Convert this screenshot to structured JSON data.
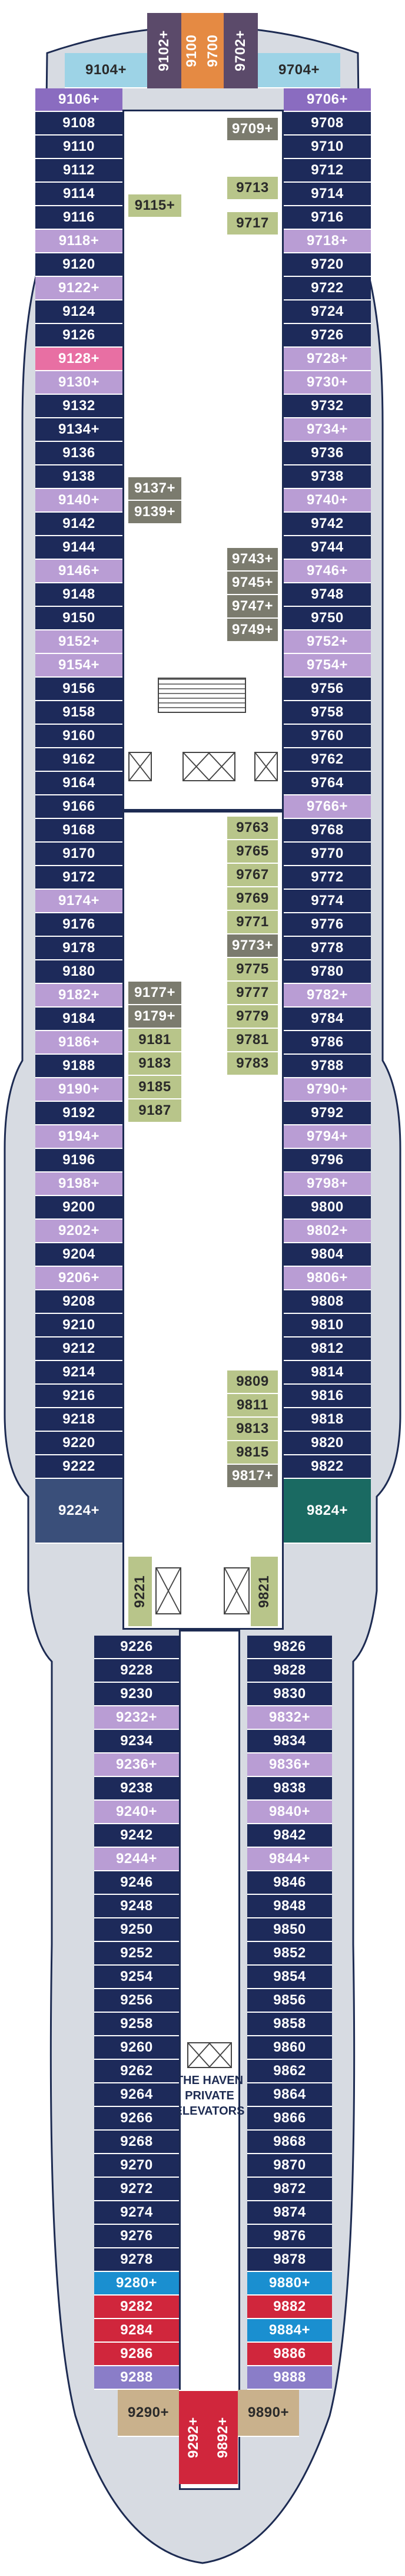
{
  "deck_plan": {
    "legend": {
      "standard": "#1d2a5a",
      "balcony": "#b99dd4",
      "spa": "#e86fa3",
      "suite": "#3a4f7a",
      "interior_suite": "#b8c58a",
      "interior_gray": "#7b7b6e",
      "haven_blue": "#1a8fd0",
      "haven_red": "#d0263c",
      "haven_purple": "#8a7dc8",
      "owner_suite": "#c9b18c",
      "forward_blue": "#9dd3e6",
      "forward_purple": "#8a6cc0",
      "forward_orange": "#e58a43",
      "forward_dark": "#5b4a6a",
      "corner_teal": "#1a6a62"
    },
    "haven_label_lines": [
      "THE HAVEN",
      "PRIVATE",
      "ELEVATORS"
    ],
    "cabins": [
      {
        "label": "9102+",
        "type": "forward_dark"
      },
      {
        "label": "9100",
        "type": "forward_orange"
      },
      {
        "label": "9700",
        "type": "forward_orange"
      },
      {
        "label": "9702+",
        "type": "forward_dark"
      },
      {
        "label": "9104+",
        "type": "forward_blue"
      },
      {
        "label": "9704+",
        "type": "forward_blue"
      },
      {
        "label": "9106+",
        "type": "forward_purple"
      },
      {
        "label": "9706+",
        "type": "forward_purple"
      },
      {
        "label": "9108",
        "type": "standard"
      },
      {
        "label": "9110",
        "type": "standard"
      },
      {
        "label": "9112",
        "type": "standard"
      },
      {
        "label": "9114",
        "type": "standard"
      },
      {
        "label": "9116",
        "type": "standard"
      },
      {
        "label": "9118+",
        "type": "balcony"
      },
      {
        "label": "9120",
        "type": "standard"
      },
      {
        "label": "9122+",
        "type": "balcony"
      },
      {
        "label": "9124",
        "type": "standard"
      },
      {
        "label": "9126",
        "type": "standard"
      },
      {
        "label": "9128+",
        "type": "spa"
      },
      {
        "label": "9130+",
        "type": "balcony"
      },
      {
        "label": "9132",
        "type": "standard"
      },
      {
        "label": "9134+",
        "type": "standard"
      },
      {
        "label": "9136",
        "type": "standard"
      },
      {
        "label": "9138",
        "type": "standard"
      },
      {
        "label": "9140+",
        "type": "balcony"
      },
      {
        "label": "9142",
        "type": "standard"
      },
      {
        "label": "9144",
        "type": "standard"
      },
      {
        "label": "9146+",
        "type": "balcony"
      },
      {
        "label": "9148",
        "type": "standard"
      },
      {
        "label": "9150",
        "type": "standard"
      },
      {
        "label": "9152+",
        "type": "balcony"
      },
      {
        "label": "9154+",
        "type": "balcony"
      },
      {
        "label": "9156",
        "type": "standard"
      },
      {
        "label": "9158",
        "type": "standard"
      },
      {
        "label": "9160",
        "type": "standard"
      },
      {
        "label": "9162",
        "type": "standard"
      },
      {
        "label": "9164",
        "type": "standard"
      },
      {
        "label": "9166",
        "type": "standard"
      },
      {
        "label": "9168",
        "type": "standard"
      },
      {
        "label": "9170",
        "type": "standard"
      },
      {
        "label": "9172",
        "type": "standard"
      },
      {
        "label": "9174+",
        "type": "balcony"
      },
      {
        "label": "9176",
        "type": "standard"
      },
      {
        "label": "9178",
        "type": "standard"
      },
      {
        "label": "9180",
        "type": "standard"
      },
      {
        "label": "9182+",
        "type": "balcony"
      },
      {
        "label": "9184",
        "type": "standard"
      },
      {
        "label": "9186+",
        "type": "balcony"
      },
      {
        "label": "9188",
        "type": "standard"
      },
      {
        "label": "9190+",
        "type": "balcony"
      },
      {
        "label": "9192",
        "type": "standard"
      },
      {
        "label": "9194+",
        "type": "balcony"
      },
      {
        "label": "9196",
        "type": "standard"
      },
      {
        "label": "9198+",
        "type": "balcony"
      },
      {
        "label": "9200",
        "type": "standard"
      },
      {
        "label": "9202+",
        "type": "balcony"
      },
      {
        "label": "9204",
        "type": "standard"
      },
      {
        "label": "9206+",
        "type": "balcony"
      },
      {
        "label": "9208",
        "type": "standard"
      },
      {
        "label": "9210",
        "type": "standard"
      },
      {
        "label": "9212",
        "type": "standard"
      },
      {
        "label": "9214",
        "type": "standard"
      },
      {
        "label": "9216",
        "type": "standard"
      },
      {
        "label": "9218",
        "type": "standard"
      },
      {
        "label": "9220",
        "type": "standard"
      },
      {
        "label": "9222",
        "type": "standard"
      },
      {
        "label": "9224+",
        "type": "suite"
      },
      {
        "label": "9708",
        "type": "standard"
      },
      {
        "label": "9710",
        "type": "standard"
      },
      {
        "label": "9712",
        "type": "standard"
      },
      {
        "label": "9714",
        "type": "standard"
      },
      {
        "label": "9716",
        "type": "standard"
      },
      {
        "label": "9718+",
        "type": "balcony"
      },
      {
        "label": "9720",
        "type": "standard"
      },
      {
        "label": "9722",
        "type": "standard"
      },
      {
        "label": "9724",
        "type": "standard"
      },
      {
        "label": "9726",
        "type": "standard"
      },
      {
        "label": "9728+",
        "type": "balcony"
      },
      {
        "label": "9730+",
        "type": "balcony"
      },
      {
        "label": "9732",
        "type": "standard"
      },
      {
        "label": "9734+",
        "type": "balcony"
      },
      {
        "label": "9736",
        "type": "standard"
      },
      {
        "label": "9738",
        "type": "standard"
      },
      {
        "label": "9740+",
        "type": "balcony"
      },
      {
        "label": "9742",
        "type": "standard"
      },
      {
        "label": "9744",
        "type": "standard"
      },
      {
        "label": "9746+",
        "type": "balcony"
      },
      {
        "label": "9748",
        "type": "standard"
      },
      {
        "label": "9750",
        "type": "standard"
      },
      {
        "label": "9752+",
        "type": "balcony"
      },
      {
        "label": "9754+",
        "type": "balcony"
      },
      {
        "label": "9756",
        "type": "standard"
      },
      {
        "label": "9758",
        "type": "standard"
      },
      {
        "label": "9760",
        "type": "standard"
      },
      {
        "label": "9762",
        "type": "standard"
      },
      {
        "label": "9764",
        "type": "standard"
      },
      {
        "label": "9766+",
        "type": "balcony"
      },
      {
        "label": "9768",
        "type": "standard"
      },
      {
        "label": "9770",
        "type": "standard"
      },
      {
        "label": "9772",
        "type": "standard"
      },
      {
        "label": "9774",
        "type": "standard"
      },
      {
        "label": "9776",
        "type": "standard"
      },
      {
        "label": "9778",
        "type": "standard"
      },
      {
        "label": "9780",
        "type": "standard"
      },
      {
        "label": "9782+",
        "type": "balcony"
      },
      {
        "label": "9784",
        "type": "standard"
      },
      {
        "label": "9786",
        "type": "standard"
      },
      {
        "label": "9788",
        "type": "standard"
      },
      {
        "label": "9790+",
        "type": "balcony"
      },
      {
        "label": "9792",
        "type": "standard"
      },
      {
        "label": "9794+",
        "type": "balcony"
      },
      {
        "label": "9796",
        "type": "standard"
      },
      {
        "label": "9798+",
        "type": "balcony"
      },
      {
        "label": "9800",
        "type": "standard"
      },
      {
        "label": "9802+",
        "type": "balcony"
      },
      {
        "label": "9804",
        "type": "standard"
      },
      {
        "label": "9806+",
        "type": "balcony"
      },
      {
        "label": "9808",
        "type": "standard"
      },
      {
        "label": "9810",
        "type": "standard"
      },
      {
        "label": "9812",
        "type": "standard"
      },
      {
        "label": "9814",
        "type": "standard"
      },
      {
        "label": "9816",
        "type": "standard"
      },
      {
        "label": "9818",
        "type": "standard"
      },
      {
        "label": "9820",
        "type": "standard"
      },
      {
        "label": "9822",
        "type": "standard"
      },
      {
        "label": "9824+",
        "type": "corner_teal"
      },
      {
        "label": "9115+",
        "type": "interior_suite"
      },
      {
        "label": "9137+",
        "type": "interior_gray"
      },
      {
        "label": "9139+",
        "type": "interior_gray"
      },
      {
        "label": "9177+",
        "type": "interior_gray"
      },
      {
        "label": "9179+",
        "type": "interior_gray"
      },
      {
        "label": "9181",
        "type": "interior_suite"
      },
      {
        "label": "9183",
        "type": "interior_suite"
      },
      {
        "label": "9185",
        "type": "interior_suite"
      },
      {
        "label": "9187",
        "type": "interior_suite"
      },
      {
        "label": "9221",
        "type": "interior_suite"
      },
      {
        "label": "9709+",
        "type": "interior_gray"
      },
      {
        "label": "9713",
        "type": "interior_suite"
      },
      {
        "label": "9717",
        "type": "interior_suite"
      },
      {
        "label": "9743+",
        "type": "interior_gray"
      },
      {
        "label": "9745+",
        "type": "interior_gray"
      },
      {
        "label": "9747+",
        "type": "interior_gray"
      },
      {
        "label": "9749+",
        "type": "interior_gray"
      },
      {
        "label": "9763",
        "type": "interior_suite"
      },
      {
        "label": "9765",
        "type": "interior_suite"
      },
      {
        "label": "9767",
        "type": "interior_suite"
      },
      {
        "label": "9769",
        "type": "interior_suite"
      },
      {
        "label": "9771",
        "type": "interior_suite"
      },
      {
        "label": "9773+",
        "type": "interior_gray"
      },
      {
        "label": "9775",
        "type": "interior_suite"
      },
      {
        "label": "9777",
        "type": "interior_suite"
      },
      {
        "label": "9779",
        "type": "interior_suite"
      },
      {
        "label": "9781",
        "type": "interior_suite"
      },
      {
        "label": "9783",
        "type": "interior_suite"
      },
      {
        "label": "9809",
        "type": "interior_suite"
      },
      {
        "label": "9811",
        "type": "interior_suite"
      },
      {
        "label": "9813",
        "type": "interior_suite"
      },
      {
        "label": "9815",
        "type": "interior_suite"
      },
      {
        "label": "9817+",
        "type": "interior_gray"
      },
      {
        "label": "9821",
        "type": "interior_suite"
      },
      {
        "label": "9226",
        "type": "standard"
      },
      {
        "label": "9228",
        "type": "standard"
      },
      {
        "label": "9230",
        "type": "standard"
      },
      {
        "label": "9232+",
        "type": "balcony"
      },
      {
        "label": "9234",
        "type": "standard"
      },
      {
        "label": "9236+",
        "type": "balcony"
      },
      {
        "label": "9238",
        "type": "standard"
      },
      {
        "label": "9240+",
        "type": "balcony"
      },
      {
        "label": "9242",
        "type": "standard"
      },
      {
        "label": "9244+",
        "type": "balcony"
      },
      {
        "label": "9246",
        "type": "standard"
      },
      {
        "label": "9248",
        "type": "standard"
      },
      {
        "label": "9250",
        "type": "standard"
      },
      {
        "label": "9252",
        "type": "standard"
      },
      {
        "label": "9254",
        "type": "standard"
      },
      {
        "label": "9256",
        "type": "standard"
      },
      {
        "label": "9258",
        "type": "standard"
      },
      {
        "label": "9260",
        "type": "standard"
      },
      {
        "label": "9262",
        "type": "standard"
      },
      {
        "label": "9264",
        "type": "standard"
      },
      {
        "label": "9266",
        "type": "standard"
      },
      {
        "label": "9268",
        "type": "standard"
      },
      {
        "label": "9270",
        "type": "standard"
      },
      {
        "label": "9272",
        "type": "standard"
      },
      {
        "label": "9274",
        "type": "standard"
      },
      {
        "label": "9276",
        "type": "standard"
      },
      {
        "label": "9278",
        "type": "standard"
      },
      {
        "label": "9280+",
        "type": "haven_blue"
      },
      {
        "label": "9282",
        "type": "haven_red"
      },
      {
        "label": "9284",
        "type": "haven_red"
      },
      {
        "label": "9286",
        "type": "haven_red"
      },
      {
        "label": "9288",
        "type": "haven_purple"
      },
      {
        "label": "9826",
        "type": "standard"
      },
      {
        "label": "9828",
        "type": "standard"
      },
      {
        "label": "9830",
        "type": "standard"
      },
      {
        "label": "9832+",
        "type": "balcony"
      },
      {
        "label": "9834",
        "type": "standard"
      },
      {
        "label": "9836+",
        "type": "balcony"
      },
      {
        "label": "9838",
        "type": "standard"
      },
      {
        "label": "9840+",
        "type": "balcony"
      },
      {
        "label": "9842",
        "type": "standard"
      },
      {
        "label": "9844+",
        "type": "balcony"
      },
      {
        "label": "9846",
        "type": "standard"
      },
      {
        "label": "9848",
        "type": "standard"
      },
      {
        "label": "9850",
        "type": "standard"
      },
      {
        "label": "9852",
        "type": "standard"
      },
      {
        "label": "9854",
        "type": "standard"
      },
      {
        "label": "9856",
        "type": "standard"
      },
      {
        "label": "9858",
        "type": "standard"
      },
      {
        "label": "9860",
        "type": "standard"
      },
      {
        "label": "9862",
        "type": "standard"
      },
      {
        "label": "9864",
        "type": "standard"
      },
      {
        "label": "9866",
        "type": "standard"
      },
      {
        "label": "9868",
        "type": "standard"
      },
      {
        "label": "9870",
        "type": "standard"
      },
      {
        "label": "9872",
        "type": "standard"
      },
      {
        "label": "9874",
        "type": "standard"
      },
      {
        "label": "9876",
        "type": "standard"
      },
      {
        "label": "9878",
        "type": "standard"
      },
      {
        "label": "9880+",
        "type": "haven_blue"
      },
      {
        "label": "9882",
        "type": "haven_red"
      },
      {
        "label": "9884+",
        "type": "haven_blue"
      },
      {
        "label": "9886",
        "type": "haven_red"
      },
      {
        "label": "9888",
        "type": "haven_purple"
      },
      {
        "label": "9290+",
        "type": "owner_suite"
      },
      {
        "label": "9292+",
        "type": "haven_red"
      },
      {
        "label": "9892+",
        "type": "haven_red"
      },
      {
        "label": "9890+",
        "type": "owner_suite"
      }
    ]
  }
}
